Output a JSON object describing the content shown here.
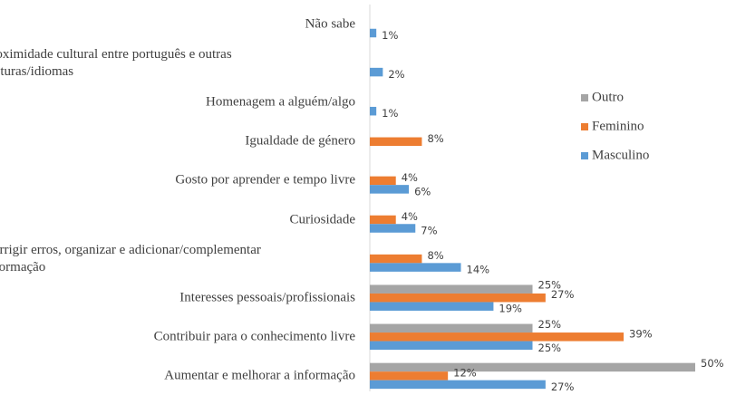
{
  "chart_data": {
    "type": "hbar",
    "categories": [
      "Não sabe",
      "Proximidade cultural entre português e outras\nculturas/idiomas",
      "Homenagem a alguém/algo",
      "Igualdade de género",
      "Gosto por aprender e tempo livre",
      "Curiosidade",
      "Corrigir erros, organizar e adicionar/complementar\ninformação",
      "Interesses pessoais/profissionais",
      "Contribuir para o conhecimento livre",
      "Aumentar e melhorar a informação"
    ],
    "series": [
      {
        "name": "Outro",
        "color": "#a5a5a5",
        "values": [
          null,
          null,
          null,
          null,
          null,
          null,
          null,
          25,
          25,
          50
        ],
        "value_labels": [
          null,
          null,
          null,
          null,
          null,
          null,
          null,
          "25%",
          "25%",
          "50%"
        ]
      },
      {
        "name": "Feminino",
        "color": "#ed7d31",
        "values": [
          null,
          null,
          null,
          8,
          4,
          4,
          8,
          27,
          39,
          12
        ],
        "value_labels": [
          null,
          null,
          null,
          "8%",
          "4%",
          "4%",
          "8%",
          "27%",
          "39%",
          "12%"
        ]
      },
      {
        "name": "Masculino",
        "color": "#5b9bd5",
        "values": [
          1,
          2,
          1,
          null,
          6,
          7,
          14,
          19,
          25,
          27
        ],
        "value_labels": [
          "1%",
          "2%",
          "1%",
          null,
          "6%",
          "7%",
          "14%",
          "19%",
          "25%",
          "27%"
        ]
      }
    ],
    "xlim": [
      0,
      50
    ],
    "legend": "right"
  }
}
